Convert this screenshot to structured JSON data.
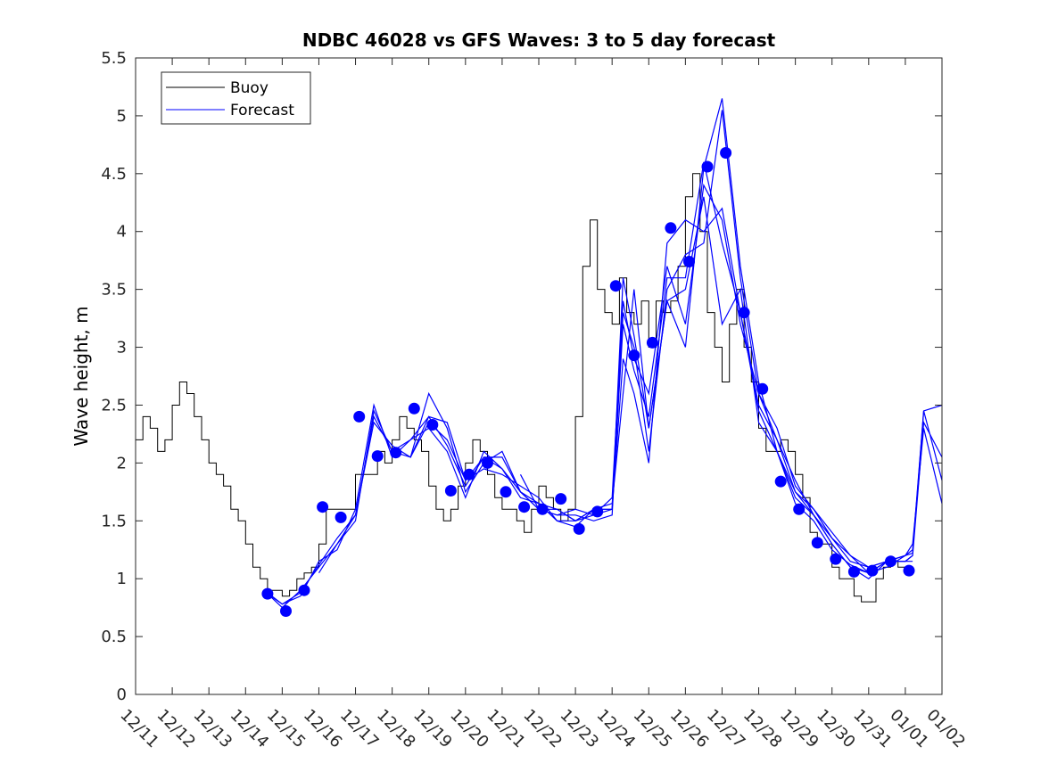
{
  "chart_data": {
    "type": "line",
    "title": "NDBC 46028 vs GFS Waves: 3 to 5 day forecast",
    "xlabel": "",
    "ylabel": "Wave height, m",
    "ylim": [
      0,
      5.5
    ],
    "yticks": [
      "0",
      "0.5",
      "1",
      "1.5",
      "2",
      "2.5",
      "3",
      "3.5",
      "4",
      "4.5",
      "5",
      "5.5"
    ],
    "xlim_days": [
      0,
      22
    ],
    "xtick_labels": [
      "12/11",
      "12/12",
      "12/13",
      "12/14",
      "12/15",
      "12/16",
      "12/17",
      "12/18",
      "12/19",
      "12/20",
      "12/21",
      "12/22",
      "12/23",
      "12/24",
      "12/25",
      "12/26",
      "12/27",
      "12/28",
      "12/29",
      "12/30",
      "12/31",
      "01/01",
      "01/02"
    ],
    "grid": false,
    "legend_position": "top-left",
    "colors": {
      "buoy": "#000000",
      "forecast": "#0000ff"
    },
    "series": [
      {
        "name": "Buoy",
        "note": "x in days since 12/11 00:00",
        "x": [
          0,
          0.2,
          0.4,
          0.6,
          0.8,
          1.0,
          1.2,
          1.4,
          1.6,
          1.8,
          2.0,
          2.2,
          2.4,
          2.6,
          2.8,
          3.0,
          3.2,
          3.4,
          3.6,
          3.8,
          4.0,
          4.2,
          4.4,
          4.6,
          4.8,
          5.0,
          5.2,
          5.4,
          5.6,
          5.8,
          6.0,
          6.2,
          6.4,
          6.6,
          6.8,
          7.0,
          7.2,
          7.4,
          7.6,
          7.8,
          8.0,
          8.2,
          8.4,
          8.6,
          8.8,
          9.0,
          9.2,
          9.4,
          9.6,
          9.8,
          10.0,
          10.2,
          10.4,
          10.6,
          10.8,
          11.0,
          11.2,
          11.4,
          11.6,
          11.8,
          12.0,
          12.2,
          12.4,
          12.6,
          12.8,
          13.0,
          13.2,
          13.4,
          13.6,
          13.8,
          14.0,
          14.2,
          14.4,
          14.6,
          14.8,
          15.0,
          15.2,
          15.4,
          15.6,
          15.8,
          16.0,
          16.2,
          16.4,
          16.6,
          16.8,
          17.0,
          17.2,
          17.4,
          17.6,
          17.8,
          18.0,
          18.2,
          18.4,
          18.6,
          18.8,
          19.0,
          19.2,
          19.4,
          19.6,
          19.8,
          20.0,
          20.2,
          20.4,
          20.6,
          20.8,
          21.0,
          21.2
        ],
        "values": [
          2.2,
          2.4,
          2.3,
          2.1,
          2.2,
          2.5,
          2.7,
          2.6,
          2.4,
          2.2,
          2.0,
          1.9,
          1.8,
          1.6,
          1.5,
          1.3,
          1.1,
          1.0,
          0.9,
          0.9,
          0.85,
          0.9,
          1.0,
          1.05,
          1.1,
          1.3,
          1.6,
          1.6,
          1.6,
          1.6,
          1.9,
          1.9,
          1.9,
          2.1,
          2.0,
          2.2,
          2.4,
          2.3,
          2.2,
          2.1,
          1.8,
          1.6,
          1.5,
          1.6,
          1.8,
          2.0,
          2.2,
          2.1,
          1.9,
          1.7,
          1.6,
          1.6,
          1.5,
          1.4,
          1.6,
          1.8,
          1.7,
          1.6,
          1.5,
          1.6,
          2.4,
          3.7,
          4.1,
          3.5,
          3.3,
          3.2,
          3.6,
          3.3,
          3.2,
          3.4,
          3.0,
          3.4,
          3.3,
          3.4,
          3.7,
          4.3,
          4.5,
          4.0,
          3.3,
          3.0,
          2.7,
          3.2,
          3.5,
          3.0,
          2.7,
          2.3,
          2.1,
          2.1,
          2.2,
          2.1,
          1.9,
          1.7,
          1.4,
          1.3,
          1.3,
          1.1,
          1.0,
          1.0,
          0.85,
          0.8,
          0.8,
          1.0,
          1.1,
          1.15,
          1.1,
          1.1,
          1.1
        ]
      },
      {
        "name": "Forecast",
        "note": "six forecast runs; x in days since 12/11 00:00",
        "runs": [
          {
            "x": [
              3.6,
              4.0,
              4.5,
              5.0,
              5.5,
              6.0,
              6.5,
              7.0,
              7.5,
              8.0,
              8.5,
              9.0,
              9.5,
              10.0,
              10.5,
              11.0,
              11.5,
              12.0,
              12.5,
              13.0,
              13.3,
              13.6,
              14.0,
              14.5,
              15.0,
              15.5,
              16.0,
              16.5,
              17.0,
              17.5,
              18.0,
              18.5,
              19.0,
              19.5,
              20.0,
              20.5,
              21.0,
              21.2,
              21.5,
              22.0
            ],
            "values": [
              0.87,
              0.78,
              0.85,
              1.15,
              1.25,
              1.6,
              2.5,
              2.05,
              2.2,
              2.4,
              2.15,
              1.8,
              2.05,
              2.05,
              1.75,
              1.6,
              1.55,
              1.55,
              1.5,
              1.55,
              3.3,
              3.0,
              2.1,
              3.5,
              3.8,
              3.9,
              5.05,
              3.6,
              2.6,
              2.2,
              1.75,
              1.6,
              1.35,
              1.2,
              1.05,
              1.1,
              1.2,
              1.22,
              2.45,
              1.85
            ]
          },
          {
            "x": [
              3.6,
              4.0,
              4.5,
              5.0,
              5.5,
              6.0,
              6.5,
              7.0,
              7.5,
              8.0,
              8.5,
              9.0,
              9.5,
              10.0,
              10.5,
              11.0,
              11.5,
              12.0,
              12.5,
              13.0,
              13.3,
              13.6,
              14.0,
              14.5,
              15.0,
              15.5,
              16.0,
              16.5,
              17.0,
              17.5,
              18.0,
              18.5,
              19.0,
              19.5,
              20.0,
              20.5,
              21.0,
              21.2,
              21.5,
              22.0
            ],
            "values": [
              0.87,
              0.75,
              0.9,
              1.1,
              1.3,
              1.5,
              2.45,
              2.1,
              2.05,
              2.6,
              2.3,
              1.75,
              2.0,
              2.1,
              1.75,
              1.65,
              1.6,
              1.5,
              1.55,
              1.6,
              2.9,
              2.6,
              2.0,
              3.9,
              4.1,
              4.0,
              4.2,
              3.3,
              2.45,
              2.1,
              1.65,
              1.5,
              1.25,
              1.12,
              1.05,
              1.15,
              1.15,
              1.2,
              2.35,
              2.05
            ]
          },
          {
            "x": [
              3.6,
              4.0,
              4.5,
              5.0,
              5.5,
              6.0,
              6.5,
              7.0,
              7.5,
              8.0,
              8.5,
              9.0,
              9.5,
              10.0,
              10.5,
              11.0,
              11.5,
              12.0,
              12.5,
              13.0,
              13.3,
              13.6,
              14.0,
              14.5,
              15.0,
              15.5,
              16.0,
              16.5,
              17.0,
              17.5,
              18.0,
              18.5,
              19.0,
              19.5,
              20.0,
              20.5,
              21.0,
              21.2,
              21.5,
              22.0
            ],
            "values": [
              0.88,
              0.78,
              0.88,
              1.12,
              1.35,
              1.55,
              2.4,
              2.1,
              2.2,
              2.3,
              2.1,
              1.7,
              2.1,
              1.95,
              1.75,
              1.6,
              1.6,
              1.5,
              1.6,
              1.65,
              2.6,
              3.5,
              2.3,
              3.4,
              3.0,
              4.55,
              5.15,
              3.7,
              2.7,
              2.1,
              1.7,
              1.55,
              1.3,
              1.1,
              1.0,
              1.15,
              1.2,
              1.25,
              2.45,
              2.5
            ]
          },
          {
            "x": [
              5.0,
              5.5,
              6.0,
              6.5,
              7.0,
              7.5,
              8.0,
              8.5,
              9.0,
              9.5,
              10.0,
              10.5,
              11.0,
              11.5,
              12.0,
              12.5,
              13.0,
              13.3,
              13.6,
              14.0,
              14.5,
              15.0,
              15.5,
              16.0,
              16.5,
              17.0,
              17.5,
              18.0,
              18.5,
              19.0,
              19.5,
              20.0,
              20.5,
              21.0,
              21.2
            ],
            "values": [
              1.05,
              1.3,
              1.55,
              2.35,
              2.15,
              2.05,
              2.35,
              2.2,
              1.85,
              1.95,
              1.9,
              1.8,
              1.7,
              1.5,
              1.5,
              1.6,
              1.6,
              3.2,
              2.8,
              2.4,
              3.6,
              3.6,
              4.6,
              3.9,
              3.3,
              2.5,
              2.2,
              1.85,
              1.55,
              1.35,
              1.15,
              1.1,
              1.15,
              1.15,
              1.2
            ]
          },
          {
            "x": [
              7.5,
              8.0,
              8.5,
              9.0,
              9.5,
              10.0,
              10.5,
              11.0,
              11.5,
              12.0,
              12.5,
              13.0,
              13.3,
              13.6,
              14.0,
              14.5,
              15.0,
              15.5,
              16.0,
              16.5,
              17.0,
              17.5,
              18.0,
              18.5,
              19.0,
              19.5,
              20.0,
              20.5,
              21.0,
              21.2
            ],
            "values": [
              2.05,
              2.4,
              2.35,
              1.85,
              2.05,
              1.95,
              1.7,
              1.65,
              1.5,
              1.45,
              1.6,
              1.6,
              3.6,
              3.1,
              2.3,
              3.4,
              3.5,
              4.3,
              3.2,
              3.5,
              2.35,
              2.1,
              1.75,
              1.55,
              1.3,
              1.1,
              1.05,
              1.15,
              1.15,
              1.15
            ]
          },
          {
            "x": [
              10.5,
              11.0,
              11.5,
              12.0,
              12.5,
              13.0,
              13.3,
              13.6,
              14.0,
              14.5,
              15.0,
              15.5,
              16.0,
              16.5,
              17.0,
              17.5,
              18.0,
              18.5,
              19.0,
              19.5,
              20.0,
              20.5,
              21.0,
              21.2,
              21.5,
              22.0
            ],
            "values": [
              1.9,
              1.6,
              1.55,
              1.6,
              1.55,
              1.7,
              3.4,
              2.9,
              2.6,
              3.7,
              3.2,
              4.4,
              4.1,
              3.2,
              2.6,
              2.3,
              1.8,
              1.6,
              1.4,
              1.2,
              1.1,
              1.15,
              1.2,
              1.3,
              2.3,
              1.65
            ]
          }
        ]
      }
    ],
    "forecast_markers": {
      "x": [
        3.6,
        4.1,
        4.6,
        5.1,
        5.6,
        6.1,
        6.6,
        7.1,
        7.6,
        8.1,
        8.6,
        9.1,
        9.6,
        10.1,
        10.6,
        11.1,
        11.6,
        12.1,
        12.6,
        13.1,
        13.6,
        14.1,
        14.6,
        15.1,
        15.6,
        16.1,
        16.6,
        17.1,
        17.6,
        18.1,
        18.6,
        19.1,
        19.6,
        20.1,
        20.6,
        21.1
      ],
      "values": [
        0.87,
        0.72,
        0.9,
        1.62,
        1.53,
        2.4,
        2.06,
        2.09,
        2.47,
        2.33,
        1.76,
        1.9,
        2.0,
        1.75,
        1.62,
        1.6,
        1.69,
        1.43,
        1.58,
        3.53,
        2.93,
        3.04,
        4.03,
        3.74,
        4.56,
        4.68,
        3.3,
        2.64,
        1.84,
        1.6,
        1.31,
        1.17,
        1.06,
        1.07,
        1.15,
        1.07
      ]
    }
  },
  "legend": [
    {
      "label": "Buoy",
      "color": "#000000"
    },
    {
      "label": "Forecast",
      "color": "#0000ff"
    }
  ]
}
